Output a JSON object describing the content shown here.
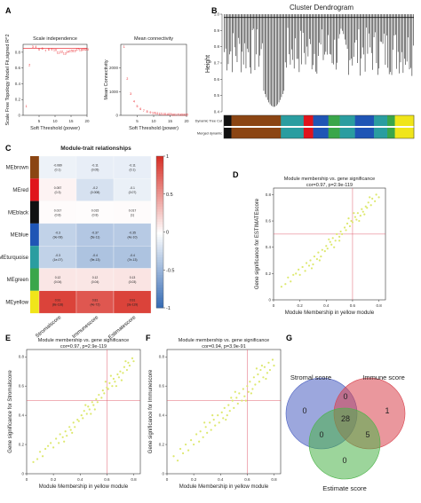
{
  "panel_letters": {
    "a": "A",
    "b": "B",
    "c": "C",
    "d": "D",
    "e": "E",
    "f": "F",
    "g": "G"
  },
  "chart_data": [
    {
      "id": "A1",
      "type": "scatter",
      "title": "Scale independence",
      "xlabel": "Soft Threshold (power)",
      "ylabel": "Scale Free Topology Model Fit,signed R^2",
      "xlim": [
        0,
        20
      ],
      "ylim": [
        0.0,
        0.9
      ],
      "xticks": [
        5,
        10,
        15,
        20
      ],
      "yticks": [
        0.0,
        0.2,
        0.4,
        0.6,
        0.8
      ],
      "threshold_line": 0.85,
      "point_color": "#e8141c",
      "points": [
        {
          "x": 1,
          "y": 0.12
        },
        {
          "x": 2,
          "y": 0.64
        },
        {
          "x": 3,
          "y": 0.87
        },
        {
          "x": 4,
          "y": 0.87
        },
        {
          "x": 5,
          "y": 0.84
        },
        {
          "x": 6,
          "y": 0.85
        },
        {
          "x": 7,
          "y": 0.82
        },
        {
          "x": 8,
          "y": 0.84
        },
        {
          "x": 9,
          "y": 0.84
        },
        {
          "x": 10,
          "y": 0.83
        },
        {
          "x": 11,
          "y": 0.8
        },
        {
          "x": 12,
          "y": 0.81
        },
        {
          "x": 13,
          "y": 0.79
        },
        {
          "x": 14,
          "y": 0.81
        },
        {
          "x": 15,
          "y": 0.82
        },
        {
          "x": 16,
          "y": 0.82
        },
        {
          "x": 17,
          "y": 0.84
        },
        {
          "x": 18,
          "y": 0.83
        },
        {
          "x": 19,
          "y": 0.84
        },
        {
          "x": 20,
          "y": 0.84
        }
      ]
    },
    {
      "id": "A2",
      "type": "scatter",
      "title": "Mean connectivity",
      "xlabel": "Soft Threshold (power)",
      "ylabel": "Mean Connectivity",
      "xlim": [
        0,
        20
      ],
      "ylim": [
        0,
        3000
      ],
      "xticks": [
        5,
        10,
        15,
        20
      ],
      "yticks": [
        0,
        1000,
        2000
      ],
      "point_color": "#e8141c",
      "points": [
        {
          "x": 1,
          "y": 2900
        },
        {
          "x": 2,
          "y": 1550
        },
        {
          "x": 3,
          "y": 920
        },
        {
          "x": 4,
          "y": 600
        },
        {
          "x": 5,
          "y": 400
        },
        {
          "x": 6,
          "y": 290
        },
        {
          "x": 7,
          "y": 210
        },
        {
          "x": 8,
          "y": 160
        },
        {
          "x": 9,
          "y": 130
        },
        {
          "x": 10,
          "y": 105
        },
        {
          "x": 11,
          "y": 88
        },
        {
          "x": 12,
          "y": 74
        },
        {
          "x": 13,
          "y": 64
        },
        {
          "x": 14,
          "y": 56
        },
        {
          "x": 15,
          "y": 50
        },
        {
          "x": 16,
          "y": 45
        },
        {
          "x": 17,
          "y": 41
        },
        {
          "x": 18,
          "y": 38
        },
        {
          "x": 19,
          "y": 35
        },
        {
          "x": 20,
          "y": 33
        }
      ]
    },
    {
      "id": "B",
      "type": "dendrogram",
      "title": "Cluster Dendrogram",
      "ylabel": "Height",
      "ylim": [
        0.4,
        1.0
      ],
      "yticks": [
        0.4,
        0.5,
        0.6,
        0.7,
        0.8,
        0.9,
        1.0
      ],
      "row_labels": [
        "Dynamic Tree Cut",
        "Merged dynamic"
      ],
      "module_colors": [
        {
          "name": "black",
          "color": "#111111",
          "frac": 0.04
        },
        {
          "name": "brown",
          "color": "#8b4513",
          "frac": 0.26
        },
        {
          "name": "turquoise",
          "color": "#2a9da0",
          "frac": 0.12
        },
        {
          "name": "red",
          "color": "#e0141c",
          "frac": 0.05
        },
        {
          "name": "blue",
          "color": "#1f55b5",
          "frac": 0.08
        },
        {
          "name": "green",
          "color": "#3aa64a",
          "frac": 0.06
        },
        {
          "name": "turquoise",
          "color": "#2a9da0",
          "frac": 0.08
        },
        {
          "name": "blue",
          "color": "#1f55b5",
          "frac": 0.1
        },
        {
          "name": "turquoise",
          "color": "#2a9da0",
          "frac": 0.07
        },
        {
          "name": "green",
          "color": "#3aa64a",
          "frac": 0.04
        },
        {
          "name": "yellow",
          "color": "#f0e51a",
          "frac": 0.1
        }
      ]
    },
    {
      "id": "C",
      "type": "heatmap",
      "title": "Module-trait relationships",
      "rows": [
        "MEbrown",
        "MEred",
        "MEblack",
        "MEblue",
        "MEturquoise",
        "MEgreen",
        "MEyellow"
      ],
      "row_colors": [
        "#8b4513",
        "#e0141c",
        "#111111",
        "#1f55b5",
        "#2a9da0",
        "#3aa64a",
        "#f0e51a"
      ],
      "columns": [
        "Stromalscore",
        "Immunescore",
        "Estimatescore"
      ],
      "values": [
        [
          -0.089,
          -0.11,
          -0.11
        ],
        [
          0.057,
          -0.2,
          -0.1
        ],
        [
          0.017,
          0.015,
          0.017
        ],
        [
          -0.3,
          -0.37,
          -0.35
        ],
        [
          -0.3,
          -0.4,
          -0.4
        ],
        [
          0.12,
          0.12,
          0.13
        ],
        [
          0.91,
          0.81,
          0.91
        ]
      ],
      "cell_text": [
        [
          "-0.089\n(0.1)",
          "-0.11\n(0.05)",
          "-0.11\n(0.1)"
        ],
        [
          "0.057\n(0.3)",
          "-0.2\n(0.008)",
          "-0.1\n(0.07)"
        ],
        [
          "0.017\n(0.8)",
          "0.015\n(0.8)",
          "0.017\n(1)"
        ],
        [
          "-0.3\n(9e-08)",
          "-0.37\n(5e-11)",
          "-0.35\n(4e-10)"
        ],
        [
          "-0.3\n(1e-07)",
          "-0.4\n(9e-13)",
          "-0.4\n(7e-13)"
        ],
        [
          "0.12\n(0.04)",
          "0.12\n(0.04)",
          "0.13\n(0.03)"
        ],
        [
          "0.91\n(8e-118)",
          "0.81\n(4e-72)",
          "0.91\n(3e-119)"
        ]
      ],
      "colorbar_ticks": [
        1,
        0.5,
        0,
        -0.5,
        -1
      ],
      "colorbar_tick_labels": [
        "1",
        "0.5",
        "0",
        "-0.5",
        "-1"
      ]
    },
    {
      "id": "D",
      "type": "scatter",
      "title": "Module membership vs. gene significance",
      "subtitle": "cor=0.97, p=2.9e-119",
      "xlabel": "Module Membership in yellow module",
      "ylabel": "Gene significance for ESTIMATEscore",
      "xlim": [
        0.0,
        0.85
      ],
      "ylim": [
        0.0,
        0.85
      ],
      "xticks": [
        0.0,
        0.2,
        0.4,
        0.6,
        0.8
      ],
      "yticks": [
        0.0,
        0.2,
        0.4,
        0.6,
        0.8
      ],
      "point_color": "#dde86e",
      "refline": {
        "x": 0.6,
        "y": 0.5
      },
      "points": [
        [
          0.06,
          0.1
        ],
        [
          0.09,
          0.12
        ],
        [
          0.11,
          0.17
        ],
        [
          0.13,
          0.14
        ],
        [
          0.15,
          0.19
        ],
        [
          0.17,
          0.2
        ],
        [
          0.19,
          0.23
        ],
        [
          0.2,
          0.19
        ],
        [
          0.22,
          0.25
        ],
        [
          0.24,
          0.22
        ],
        [
          0.25,
          0.28
        ],
        [
          0.27,
          0.26
        ],
        [
          0.28,
          0.3
        ],
        [
          0.3,
          0.27
        ],
        [
          0.31,
          0.33
        ],
        [
          0.33,
          0.31
        ],
        [
          0.34,
          0.36
        ],
        [
          0.36,
          0.33
        ],
        [
          0.37,
          0.38
        ],
        [
          0.39,
          0.37
        ],
        [
          0.4,
          0.41
        ],
        [
          0.41,
          0.39
        ],
        [
          0.43,
          0.44
        ],
        [
          0.44,
          0.42
        ],
        [
          0.45,
          0.47
        ],
        [
          0.47,
          0.45
        ],
        [
          0.48,
          0.5
        ],
        [
          0.5,
          0.48
        ],
        [
          0.51,
          0.52
        ],
        [
          0.52,
          0.5
        ],
        [
          0.54,
          0.55
        ],
        [
          0.55,
          0.53
        ],
        [
          0.56,
          0.58
        ],
        [
          0.58,
          0.56
        ],
        [
          0.59,
          0.6
        ],
        [
          0.6,
          0.59
        ],
        [
          0.62,
          0.63
        ],
        [
          0.63,
          0.61
        ],
        [
          0.64,
          0.66
        ],
        [
          0.66,
          0.64
        ],
        [
          0.67,
          0.69
        ],
        [
          0.68,
          0.67
        ],
        [
          0.7,
          0.71
        ],
        [
          0.71,
          0.7
        ],
        [
          0.72,
          0.74
        ],
        [
          0.74,
          0.72
        ],
        [
          0.75,
          0.77
        ],
        [
          0.77,
          0.75
        ],
        [
          0.78,
          0.8
        ],
        [
          0.8,
          0.78
        ],
        [
          0.35,
          0.3
        ],
        [
          0.42,
          0.46
        ],
        [
          0.5,
          0.45
        ],
        [
          0.57,
          0.62
        ],
        [
          0.65,
          0.6
        ],
        [
          0.73,
          0.78
        ],
        [
          0.29,
          0.24
        ],
        [
          0.46,
          0.4
        ],
        [
          0.61,
          0.66
        ],
        [
          0.69,
          0.65
        ]
      ]
    },
    {
      "id": "E",
      "type": "scatter",
      "title": "Module membership vs. gene significance",
      "subtitle": "cor=0.97, p=2.9e-119",
      "xlabel": "Module Membership in yellow module",
      "ylabel": "Gene significance for Stromalscore",
      "xlim": [
        0.0,
        0.85
      ],
      "ylim": [
        0.0,
        0.85
      ],
      "xticks": [
        0.0,
        0.2,
        0.4,
        0.6,
        0.8
      ],
      "yticks": [
        0.0,
        0.2,
        0.4,
        0.6,
        0.8
      ],
      "point_color": "#dde86e",
      "refline": {
        "x": 0.6,
        "y": 0.5
      },
      "points": [
        [
          0.05,
          0.08
        ],
        [
          0.08,
          0.1
        ],
        [
          0.1,
          0.15
        ],
        [
          0.12,
          0.12
        ],
        [
          0.14,
          0.17
        ],
        [
          0.16,
          0.19
        ],
        [
          0.18,
          0.21
        ],
        [
          0.2,
          0.18
        ],
        [
          0.22,
          0.24
        ],
        [
          0.24,
          0.21
        ],
        [
          0.25,
          0.27
        ],
        [
          0.27,
          0.25
        ],
        [
          0.29,
          0.29
        ],
        [
          0.3,
          0.26
        ],
        [
          0.32,
          0.32
        ],
        [
          0.33,
          0.3
        ],
        [
          0.35,
          0.35
        ],
        [
          0.36,
          0.32
        ],
        [
          0.38,
          0.37
        ],
        [
          0.39,
          0.36
        ],
        [
          0.41,
          0.4
        ],
        [
          0.42,
          0.38
        ],
        [
          0.43,
          0.43
        ],
        [
          0.45,
          0.41
        ],
        [
          0.46,
          0.46
        ],
        [
          0.47,
          0.44
        ],
        [
          0.49,
          0.49
        ],
        [
          0.5,
          0.47
        ],
        [
          0.52,
          0.51
        ],
        [
          0.53,
          0.49
        ],
        [
          0.54,
          0.54
        ],
        [
          0.56,
          0.52
        ],
        [
          0.57,
          0.57
        ],
        [
          0.58,
          0.55
        ],
        [
          0.6,
          0.59
        ],
        [
          0.61,
          0.58
        ],
        [
          0.62,
          0.62
        ],
        [
          0.64,
          0.6
        ],
        [
          0.65,
          0.65
        ],
        [
          0.66,
          0.63
        ],
        [
          0.68,
          0.68
        ],
        [
          0.69,
          0.66
        ],
        [
          0.7,
          0.7
        ],
        [
          0.72,
          0.69
        ],
        [
          0.73,
          0.73
        ],
        [
          0.75,
          0.71
        ],
        [
          0.76,
          0.76
        ],
        [
          0.77,
          0.74
        ],
        [
          0.79,
          0.79
        ],
        [
          0.8,
          0.77
        ],
        [
          0.34,
          0.28
        ],
        [
          0.44,
          0.47
        ],
        [
          0.51,
          0.44
        ],
        [
          0.59,
          0.63
        ],
        [
          0.67,
          0.6
        ],
        [
          0.74,
          0.77
        ],
        [
          0.28,
          0.22
        ],
        [
          0.48,
          0.41
        ],
        [
          0.63,
          0.67
        ],
        [
          0.71,
          0.64
        ]
      ]
    },
    {
      "id": "F",
      "type": "scatter",
      "title": "Module membership vs. gene significance",
      "subtitle": "cor=0.94, p=3.9e-91",
      "xlabel": "Module Membership in yellow module",
      "ylabel": "Gene significance for Immunescore",
      "xlim": [
        0.0,
        0.85
      ],
      "ylim": [
        0.0,
        0.85
      ],
      "xticks": [
        0.0,
        0.2,
        0.4,
        0.6,
        0.8
      ],
      "yticks": [
        0.0,
        0.2,
        0.4,
        0.6,
        0.8
      ],
      "point_color": "#dde86e",
      "refline": {
        "x": 0.6,
        "y": 0.5
      },
      "points": [
        [
          0.05,
          0.12
        ],
        [
          0.08,
          0.09
        ],
        [
          0.1,
          0.17
        ],
        [
          0.12,
          0.14
        ],
        [
          0.14,
          0.2
        ],
        [
          0.16,
          0.16
        ],
        [
          0.18,
          0.23
        ],
        [
          0.2,
          0.2
        ],
        [
          0.22,
          0.27
        ],
        [
          0.24,
          0.22
        ],
        [
          0.25,
          0.29
        ],
        [
          0.27,
          0.25
        ],
        [
          0.29,
          0.32
        ],
        [
          0.3,
          0.28
        ],
        [
          0.32,
          0.35
        ],
        [
          0.33,
          0.3
        ],
        [
          0.35,
          0.37
        ],
        [
          0.36,
          0.33
        ],
        [
          0.38,
          0.4
        ],
        [
          0.39,
          0.35
        ],
        [
          0.41,
          0.42
        ],
        [
          0.42,
          0.38
        ],
        [
          0.43,
          0.45
        ],
        [
          0.45,
          0.4
        ],
        [
          0.46,
          0.47
        ],
        [
          0.47,
          0.43
        ],
        [
          0.49,
          0.5
        ],
        [
          0.5,
          0.45
        ],
        [
          0.52,
          0.52
        ],
        [
          0.53,
          0.48
        ],
        [
          0.54,
          0.55
        ],
        [
          0.56,
          0.5
        ],
        [
          0.57,
          0.58
        ],
        [
          0.58,
          0.53
        ],
        [
          0.6,
          0.6
        ],
        [
          0.61,
          0.56
        ],
        [
          0.62,
          0.63
        ],
        [
          0.64,
          0.58
        ],
        [
          0.65,
          0.66
        ],
        [
          0.66,
          0.61
        ],
        [
          0.68,
          0.68
        ],
        [
          0.69,
          0.63
        ],
        [
          0.7,
          0.71
        ],
        [
          0.72,
          0.66
        ],
        [
          0.73,
          0.73
        ],
        [
          0.75,
          0.69
        ],
        [
          0.76,
          0.76
        ],
        [
          0.77,
          0.71
        ],
        [
          0.79,
          0.78
        ],
        [
          0.8,
          0.74
        ],
        [
          0.34,
          0.4
        ],
        [
          0.44,
          0.37
        ],
        [
          0.51,
          0.56
        ],
        [
          0.59,
          0.5
        ],
        [
          0.67,
          0.72
        ],
        [
          0.74,
          0.65
        ],
        [
          0.28,
          0.35
        ],
        [
          0.48,
          0.52
        ],
        [
          0.63,
          0.55
        ],
        [
          0.71,
          0.74
        ]
      ]
    },
    {
      "id": "G",
      "type": "venn",
      "sets": [
        {
          "label": "Stromal score",
          "color": "#4a5fc1"
        },
        {
          "label": "Immune score",
          "color": "#d8414c"
        },
        {
          "label": "Estimate score",
          "color": "#4bb348"
        }
      ],
      "regions": {
        "stromal_only": 0,
        "immune_only": 1,
        "estimate_only": 0,
        "stromal_immune": 0,
        "stromal_estimate": 0,
        "immune_estimate": 5,
        "all_three": 28
      }
    }
  ]
}
